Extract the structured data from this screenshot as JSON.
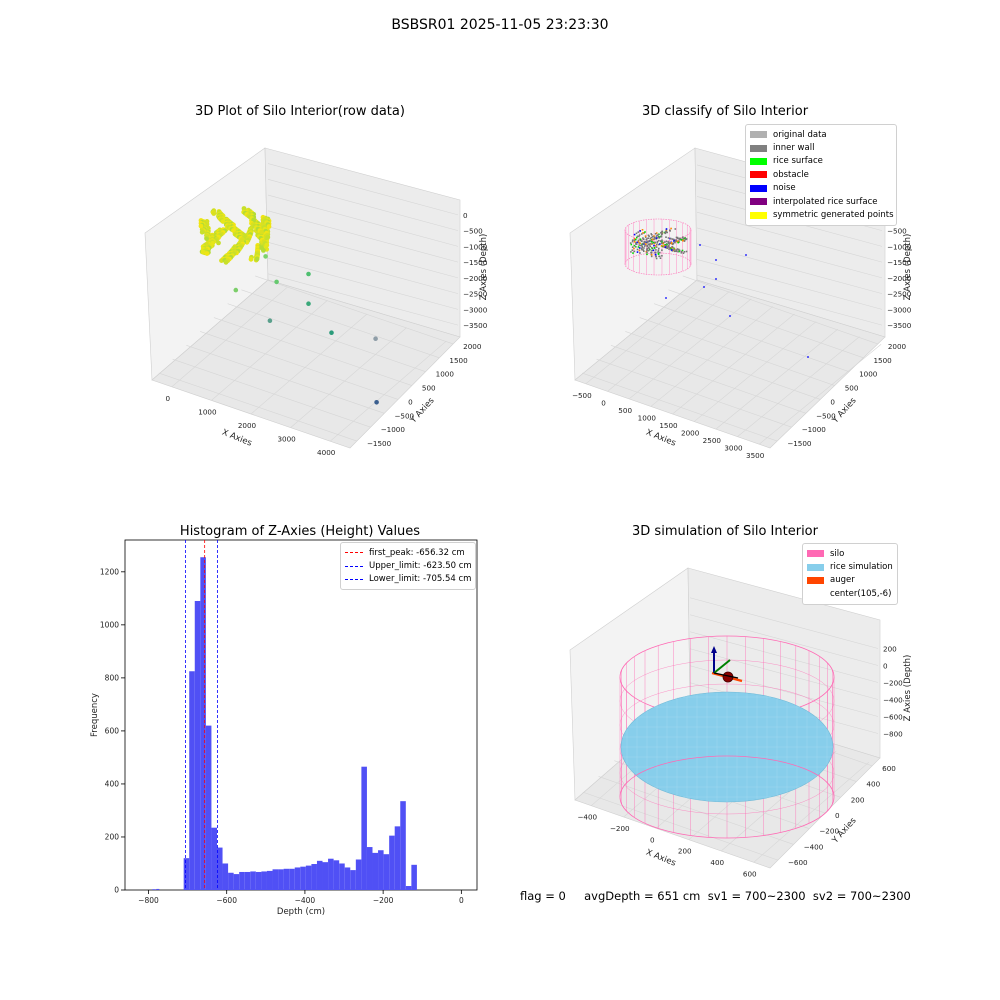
{
  "suptitle": "BSBSR01 2025-11-05 23:23:30",
  "footer": "flag = 0     avgDepth = 651 cm  sv1 = 700~2300  sv2 = 700~2300",
  "colors": {
    "pane": "#f3f3f3",
    "grid": "#d8d8d8",
    "hist_bar": "#5050f5",
    "peak_line": "#ff0000",
    "limit_line": "#0000ff",
    "silo": "#ff69b4",
    "rice": "#87ceeb",
    "auger": "#ff4500"
  },
  "chart_data": [
    {
      "type": "scatter",
      "title": "3D Plot of Silo Interior(row data)",
      "xlabel": "X Axies",
      "ylabel": "Y Axies",
      "zlabel": "Z Axies (Depth)",
      "x_ticks": [
        "0",
        "1000",
        "2000",
        "3000",
        "4000"
      ],
      "y_ticks": [
        "2000",
        "1500",
        "1000",
        "500",
        "0",
        "−500",
        "−1000",
        "−1500"
      ],
      "z_ticks": [
        "0",
        "−500",
        "−1000",
        "−1500",
        "−2000",
        "−2500",
        "−3000",
        "−3500"
      ],
      "xlim": [
        -500,
        4000
      ],
      "ylim": [
        -1500,
        2000
      ],
      "zlim": [
        -3700,
        100
      ],
      "grid": true,
      "points": [
        {
          "x": 500,
          "y": 600,
          "z": -1400
        },
        {
          "x": 900,
          "y": 400,
          "z": -1800
        },
        {
          "x": 1400,
          "y": 700,
          "z": -1600
        },
        {
          "x": 1700,
          "y": 300,
          "z": -2000
        },
        {
          "x": 1200,
          "y": -200,
          "z": -2300
        },
        {
          "x": 2300,
          "y": 200,
          "z": -2500
        },
        {
          "x": 3000,
          "y": 600,
          "z": -2700
        },
        {
          "x": 3700,
          "y": -300,
          "z": -3500
        },
        {
          "x": 200,
          "y": 100,
          "z": -2100
        }
      ]
    },
    {
      "type": "scatter",
      "title": "3D classify of Silo Interior",
      "xlabel": "X Axies",
      "ylabel": "Y Axies",
      "zlabel": "Z Axies (Depth)",
      "x_ticks": [
        "−500",
        "0",
        "500",
        "1000",
        "1500",
        "2000",
        "2500",
        "3000",
        "3500"
      ],
      "y_ticks": [
        "2000",
        "1500",
        "1000",
        "500",
        "0",
        "−500",
        "−1000",
        "−1500"
      ],
      "z_ticks": [
        "0",
        "−500",
        "−1000",
        "−1500",
        "−2000",
        "−2500",
        "−3000",
        "−3500"
      ],
      "grid": true,
      "legend": {
        "position": "top-right",
        "items": [
          {
            "label": "original data",
            "color": "#b0b0b0"
          },
          {
            "label": "inner wall",
            "color": "#808080"
          },
          {
            "label": "rice surface",
            "color": "#00ff00"
          },
          {
            "label": "obstacle",
            "color": "#ff0000"
          },
          {
            "label": "noise",
            "color": "#0000ff"
          },
          {
            "label": "interpolated rice surface",
            "color": "#800080"
          },
          {
            "label": "symmetric generated points",
            "color": "#ffff00"
          }
        ]
      }
    },
    {
      "type": "bar",
      "title": "Histogram of Z-Axies (Height) Values",
      "xlabel": "Depth (cm)",
      "ylabel": "Frequency",
      "xlim": [
        -860,
        40
      ],
      "ylim": [
        0,
        1320
      ],
      "x_ticks": [
        -800,
        -600,
        -400,
        -200,
        0
      ],
      "y_ticks": [
        0,
        200,
        400,
        600,
        800,
        1000,
        1200
      ],
      "bin_start": -710,
      "bin_width": 14.2,
      "values": [
        120,
        825,
        1090,
        1255,
        620,
        235,
        160,
        100,
        65,
        60,
        68,
        68,
        70,
        68,
        70,
        72,
        78,
        78,
        80,
        80,
        85,
        88,
        92,
        98,
        110,
        105,
        118,
        112,
        100,
        85,
        75,
        115,
        465,
        162,
        140,
        150,
        135,
        205,
        240,
        335,
        15,
        95
      ],
      "outliers": [
        {
          "x": -780,
          "y": 4
        },
        {
          "x": -790,
          "y": 3
        }
      ],
      "lines": [
        {
          "label": "first_peak: -656.32 cm",
          "x": -656.32,
          "color": "#ff0000"
        },
        {
          "label": "Upper_limit: -623.50 cm",
          "x": -623.5,
          "color": "#0000ff"
        },
        {
          "label": "Lower_limit: -705.54 cm",
          "x": -705.54,
          "color": "#0000ff"
        }
      ],
      "legend_position": "top-right"
    },
    {
      "type": "scatter",
      "title": "3D simulation of Silo Interior",
      "xlabel": "X Axies",
      "ylabel": "Y Axies",
      "zlabel": "Z Axies (Depth)",
      "x_ticks": [
        "−400",
        "−200",
        "0",
        "200",
        "400",
        "600"
      ],
      "y_ticks": [
        "600",
        "400",
        "200",
        "0",
        "−200",
        "−400",
        "−600"
      ],
      "z_ticks": [
        "200",
        "0",
        "−200",
        "−400",
        "−600",
        "−800"
      ],
      "grid": true,
      "legend": {
        "position": "top-right",
        "items": [
          {
            "label": "silo",
            "color": "#ff69b4"
          },
          {
            "label": "rice simulation",
            "color": "#87ceeb"
          },
          {
            "label": "auger",
            "color": "#ff4500"
          },
          {
            "label": "center(105,-6)",
            "color": "#ffffff"
          }
        ]
      }
    }
  ]
}
